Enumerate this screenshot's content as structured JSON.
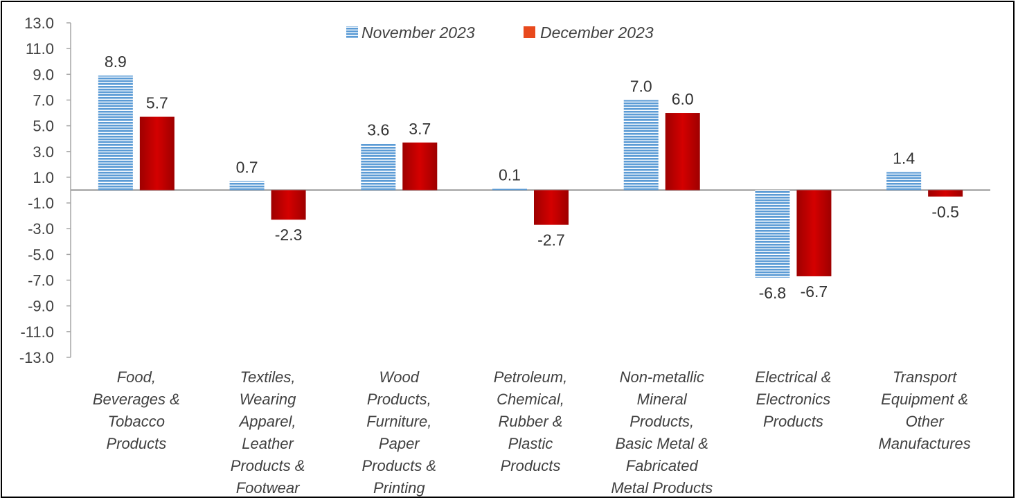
{
  "chart_data": {
    "type": "bar",
    "title": "",
    "xlabel": "",
    "ylabel": "",
    "ylim": [
      -13.0,
      13.0
    ],
    "yticks": [
      "13.0",
      "11.0",
      "9.0",
      "7.0",
      "5.0",
      "3.0",
      "1.0",
      "-1.0",
      "-3.0",
      "-5.0",
      "-7.0",
      "-9.0",
      "-11.0",
      "-13.0"
    ],
    "grid": false,
    "legend_position": "top-center",
    "categories": [
      "Food, Beverages & Tobacco Products",
      "Textiles, Wearing Apparel, Leather Products & Footwear",
      "Wood Products, Furniture, Paper Products & Printing",
      "Petroleum, Chemical, Rubber & Plastic Products",
      "Non-metallic Mineral Products, Basic Metal & Fabricated Metal Products",
      "Electrical & Electronics Products",
      "Transport Equipment & Other Manufactures"
    ],
    "category_lines": [
      [
        "Food,",
        "Beverages &",
        "Tobacco",
        "Products"
      ],
      [
        "Textiles,",
        "Wearing",
        "Apparel,",
        "Leather",
        "Products &",
        "Footwear"
      ],
      [
        "Wood",
        "Products,",
        "Furniture,",
        "Paper",
        "Products &",
        "Printing"
      ],
      [
        "Petroleum,",
        "Chemical,",
        "Rubber &",
        "Plastic",
        "Products"
      ],
      [
        "Non-metallic",
        "Mineral",
        "Products,",
        "Basic Metal &",
        "Fabricated",
        "Metal Products"
      ],
      [
        "Electrical &",
        "Electronics",
        "Products"
      ],
      [
        "Transport",
        "Equipment &",
        "Other",
        "Manufactures"
      ]
    ],
    "series": [
      {
        "name": "November 2023",
        "color": "#5B9BD5",
        "pattern": "horizontal-stripes",
        "values": [
          8.9,
          0.7,
          3.6,
          0.1,
          7.0,
          -6.8,
          1.4
        ],
        "labels": [
          "8.9",
          "0.7",
          "3.6",
          "0.1",
          "7.0",
          "-6.8",
          "1.4"
        ]
      },
      {
        "name": "December 2023",
        "color": "#C00000",
        "legend_color": "#E8491D",
        "values": [
          5.7,
          -2.3,
          3.7,
          -2.7,
          6.0,
          -6.7,
          -0.5
        ],
        "labels": [
          "5.7",
          "-2.3",
          "3.7",
          "-2.7",
          "6.0",
          "-6.7",
          "-0.5"
        ]
      }
    ]
  }
}
